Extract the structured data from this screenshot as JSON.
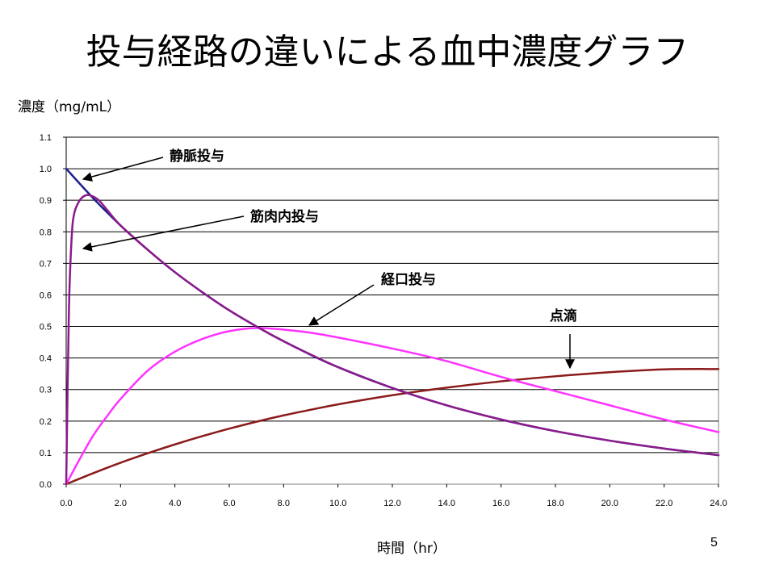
{
  "slide": {
    "title": "投与経路の違いによる血中濃度グラフ",
    "page_number": "5"
  },
  "chart_data": {
    "type": "line",
    "title": "",
    "xlabel": "時間（hr）",
    "ylabel": "濃度（mg/mL）",
    "xlim": [
      0,
      24
    ],
    "ylim": [
      0,
      1.1
    ],
    "x_ticks": [
      "0.0",
      "2.0",
      "4.0",
      "6.0",
      "8.0",
      "10.0",
      "12.0",
      "14.0",
      "16.0",
      "18.0",
      "20.0",
      "22.0",
      "24.0"
    ],
    "y_ticks": [
      "0.0",
      "0.1",
      "0.2",
      "0.3",
      "0.4",
      "0.5",
      "0.6",
      "0.7",
      "0.8",
      "0.9",
      "1.0",
      "1.1"
    ],
    "grid": "horizontal",
    "series": [
      {
        "name": "静脈投与",
        "color": "#1f1f8c",
        "x": [
          0,
          1,
          2,
          3,
          4,
          5,
          6,
          7,
          8,
          9,
          10,
          12,
          14,
          16,
          18,
          20,
          22,
          24
        ],
        "values": [
          1.0,
          0.906,
          0.82,
          0.743,
          0.672,
          0.609,
          0.551,
          0.5,
          0.453,
          0.41,
          0.371,
          0.305,
          0.25,
          0.205,
          0.168,
          0.138,
          0.113,
          0.092
        ]
      },
      {
        "name": "筋肉内投与",
        "color": "#8b1a8b",
        "x": [
          0,
          0.1,
          0.2,
          0.3,
          0.5,
          0.7,
          0.9,
          1.2,
          1.5,
          2,
          3,
          4,
          5,
          6,
          7,
          8,
          10,
          12,
          14,
          16,
          18,
          20,
          22,
          24
        ],
        "values": [
          0,
          0.55,
          0.78,
          0.86,
          0.9,
          0.915,
          0.915,
          0.9,
          0.87,
          0.82,
          0.743,
          0.672,
          0.609,
          0.551,
          0.5,
          0.453,
          0.371,
          0.305,
          0.25,
          0.205,
          0.168,
          0.138,
          0.113,
          0.092
        ]
      },
      {
        "name": "経口投与",
        "color": "#ff33ff",
        "x": [
          0,
          0.5,
          1,
          1.5,
          2,
          3,
          4,
          5,
          6,
          7,
          8,
          9,
          10,
          12,
          14,
          16,
          18,
          20,
          22,
          24
        ],
        "values": [
          0,
          0.08,
          0.155,
          0.215,
          0.27,
          0.36,
          0.42,
          0.46,
          0.485,
          0.495,
          0.49,
          0.48,
          0.465,
          0.43,
          0.39,
          0.34,
          0.295,
          0.25,
          0.205,
          0.165
        ]
      },
      {
        "name": "点滴",
        "color": "#8b1a1a",
        "x": [
          0,
          1,
          2,
          3,
          4,
          5,
          6,
          7,
          8,
          9,
          10,
          12,
          14,
          16,
          18,
          20,
          22,
          24
        ],
        "values": [
          0,
          0.035,
          0.068,
          0.098,
          0.126,
          0.152,
          0.176,
          0.198,
          0.218,
          0.236,
          0.253,
          0.282,
          0.306,
          0.326,
          0.342,
          0.355,
          0.364,
          0.365
        ]
      }
    ],
    "annotations": [
      {
        "text": "静脈投与"
      },
      {
        "text": "筋肉内投与"
      },
      {
        "text": "経口投与"
      },
      {
        "text": "点滴"
      }
    ]
  }
}
